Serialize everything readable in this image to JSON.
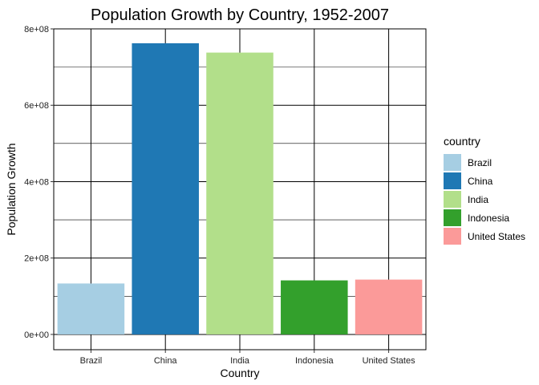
{
  "chart_data": {
    "type": "bar",
    "title": "Population Growth by Country, 1952-2007",
    "xlabel": "Country",
    "ylabel": "Population Growth",
    "categories": [
      "Brazil",
      "China",
      "India",
      "Indonesia",
      "United States"
    ],
    "values": [
      133400000,
      762400000,
      737900000,
      141500000,
      143600000
    ],
    "colors": [
      "#a6cee3",
      "#1f78b4",
      "#b2df8a",
      "#33a02c",
      "#fb9a99"
    ],
    "ylim": [
      -40000000,
      800000000
    ],
    "yticks": [
      0,
      200000000,
      400000000,
      600000000,
      800000000
    ],
    "ytick_labels": [
      "0e+00",
      "2e+08",
      "4e+08",
      "6e+08",
      "8e+08"
    ],
    "grid": true,
    "legend": {
      "title": "country",
      "placement": "right",
      "entries": [
        "Brazil",
        "China",
        "India",
        "Indonesia",
        "United States"
      ]
    }
  }
}
